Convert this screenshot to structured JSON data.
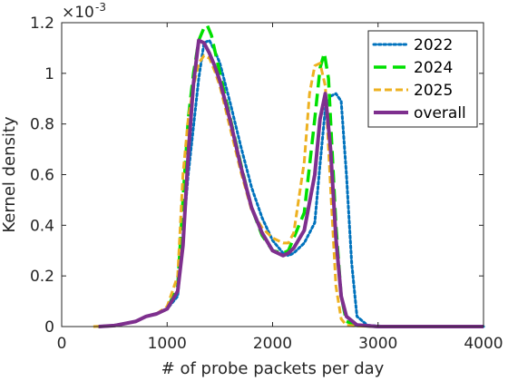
{
  "chart_data": {
    "type": "line",
    "title": "",
    "xlabel": "# of probe packets per day",
    "ylabel": "Kernel density",
    "xlim": [
      0,
      4000
    ],
    "ylim": [
      0,
      0.0012
    ],
    "x_ticks": [
      0,
      1000,
      2000,
      3000,
      4000
    ],
    "x_tick_labels": [
      "0",
      "1000",
      "2000",
      "3000",
      "4000"
    ],
    "y_ticks": [
      0,
      0.0002,
      0.0004,
      0.0006,
      0.0008,
      0.001,
      0.0012
    ],
    "y_tick_labels": [
      "0",
      "0.2",
      "0.4",
      "0.6",
      "0.8",
      "1",
      "1.2"
    ],
    "y_exponent": {
      "base": "×10",
      "power": "-3"
    },
    "grid": false,
    "legend_position": "top-right",
    "series": [
      {
        "name": "2022",
        "color": "#0072BD",
        "dash": "dotted",
        "x": [
          350,
          500,
          700,
          800,
          900,
          1000,
          1100,
          1200,
          1300,
          1350,
          1400,
          1450,
          1500,
          1600,
          1700,
          1800,
          1900,
          2000,
          2100,
          2150,
          2200,
          2300,
          2400,
          2450,
          2500,
          2550,
          2600,
          2650,
          2700,
          2750,
          2800,
          2900,
          3000,
          3500,
          4000
        ],
        "y": [
          0.0,
          4e-06,
          2e-05,
          4e-05,
          5e-05,
          7e-05,
          0.00012,
          0.0006,
          0.00098,
          0.00112,
          0.00113,
          0.00109,
          0.00104,
          0.00088,
          0.00071,
          0.00055,
          0.00043,
          0.00034,
          0.00029,
          0.00028,
          0.00029,
          0.00033,
          0.00041,
          0.00064,
          0.00086,
          0.00091,
          0.00092,
          0.00089,
          0.0006,
          0.00025,
          4e-05,
          5e-06,
          2e-06,
          0.0,
          0.0
        ]
      },
      {
        "name": "2024",
        "color": "#00E000",
        "dash": "long-dash",
        "x": [
          350,
          500,
          700,
          800,
          900,
          1000,
          1100,
          1150,
          1200,
          1250,
          1300,
          1350,
          1380,
          1420,
          1500,
          1600,
          1700,
          1800,
          1900,
          2000,
          2100,
          2150,
          2200,
          2300,
          2400,
          2450,
          2490,
          2530,
          2600,
          2650,
          2700,
          2800,
          3000,
          4000
        ],
        "y": [
          0.0,
          4e-06,
          2e-05,
          4e-05,
          5e-05,
          7e-05,
          0.00016,
          0.0005,
          0.00082,
          0.001,
          0.00113,
          0.00118,
          0.00119,
          0.00115,
          0.001,
          0.00082,
          0.00064,
          0.00047,
          0.00036,
          0.0003,
          0.00029,
          0.0003,
          0.00035,
          0.00045,
          0.00082,
          0.00102,
          0.00108,
          0.00098,
          0.0004,
          0.00012,
          2e-05,
          4e-06,
          0.0,
          0.0
        ]
      },
      {
        "name": "2025",
        "color": "#EDB120",
        "dash": "dashed",
        "x": [
          300,
          500,
          700,
          800,
          900,
          1000,
          1100,
          1150,
          1200,
          1250,
          1300,
          1350,
          1400,
          1450,
          1500,
          1600,
          1700,
          1800,
          1900,
          2000,
          2100,
          2150,
          2200,
          2300,
          2350,
          2400,
          2450,
          2500,
          2550,
          2600,
          2650,
          2700,
          2800,
          3000,
          4000
        ],
        "y": [
          0.0,
          4e-06,
          2e-05,
          4e-05,
          5e-05,
          8e-05,
          0.0002,
          0.0006,
          0.00082,
          0.00095,
          0.00104,
          0.00107,
          0.00106,
          0.00101,
          0.00095,
          0.00078,
          0.00061,
          0.00046,
          0.00039,
          0.00035,
          0.00033,
          0.00033,
          0.00037,
          0.00065,
          0.00092,
          0.00103,
          0.00104,
          0.00095,
          0.00055,
          0.00016,
          3e-05,
          5e-06,
          2e-06,
          0.0,
          0.0
        ]
      },
      {
        "name": "overall",
        "color": "#7E2F8E",
        "dash": "solid",
        "x": [
          350,
          500,
          700,
          800,
          900,
          1000,
          1100,
          1150,
          1200,
          1250,
          1300,
          1350,
          1400,
          1450,
          1500,
          1600,
          1700,
          1800,
          1900,
          2000,
          2100,
          2150,
          2200,
          2300,
          2400,
          2450,
          2500,
          2550,
          2600,
          2650,
          2700,
          2800,
          3000,
          4000
        ],
        "y": [
          0.0,
          4e-06,
          2e-05,
          4e-05,
          5e-05,
          7e-05,
          0.00014,
          0.00032,
          0.00068,
          0.00096,
          0.00113,
          0.00112,
          0.00108,
          0.00103,
          0.00097,
          0.00081,
          0.00063,
          0.00047,
          0.00037,
          0.0003,
          0.00028,
          0.00029,
          0.00031,
          0.00038,
          0.0006,
          0.00082,
          0.00092,
          0.0007,
          0.00035,
          0.00012,
          4e-05,
          6e-06,
          0.0,
          0.0
        ]
      }
    ]
  }
}
